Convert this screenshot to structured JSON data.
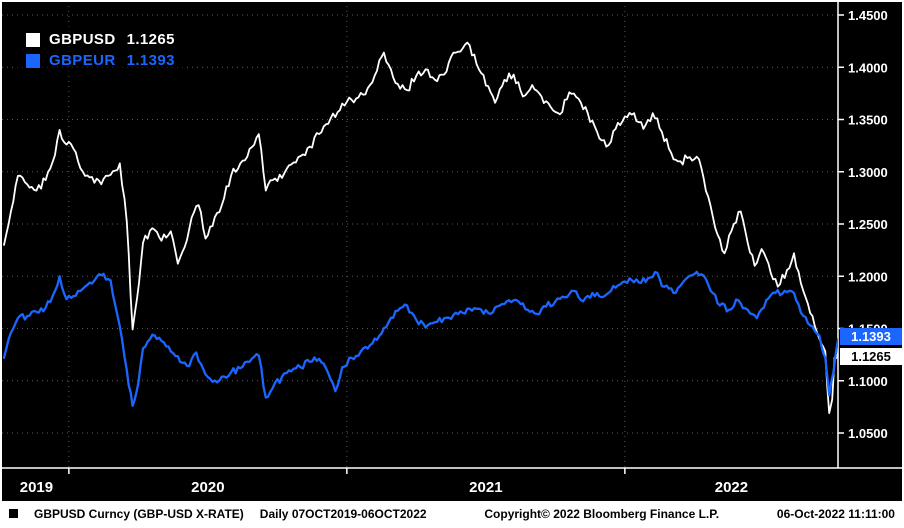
{
  "window": {
    "bg": "#000000",
    "border": "#ffffff"
  },
  "colors": {
    "gbpusd": "#ffffff",
    "gbpeur": "#1a66ff",
    "grid": "#5a5a5a",
    "axis": "#ffffff"
  },
  "legend": {
    "items": [
      {
        "label": "GBPUSD",
        "value": "1.1265",
        "color": "#ffffff"
      },
      {
        "label": "GBPEUR",
        "value": "1.1393",
        "color": "#1a66ff"
      }
    ]
  },
  "badges": [
    {
      "text": "1.1393",
      "value": 1.1393,
      "bg": "#1a66ff",
      "fg": "#ffffff"
    },
    {
      "text": "1.1265",
      "value": 1.1265,
      "bg": "#ffffff",
      "fg": "#000000"
    }
  ],
  "footer": {
    "left": "GBPUSD Curncy (GBP-USD X-RATE)",
    "period": "Daily 07OCT2019-06OCT2022",
    "center": "Copyright© 2022 Bloomberg Finance L.P.",
    "right": "06-Oct-2022 11:11:00"
  },
  "chart_data": {
    "type": "line",
    "title": "",
    "x_unit": "months since 2019-10-07",
    "xlim": [
      0,
      36
    ],
    "ylim": [
      1.05,
      1.45
    ],
    "grid": "dotted",
    "legend_position": "top-left",
    "x_ticks": {
      "labels": [
        "2019",
        "2020",
        "2021",
        "2022"
      ],
      "year_boundaries_months": [
        2.8,
        14.8,
        26.8
      ]
    },
    "y_ticks": [
      "1.4500",
      "1.4000",
      "1.3500",
      "1.3000",
      "1.2500",
      "1.2000",
      "1.1500",
      "1.1000",
      "1.0500"
    ],
    "series": [
      {
        "name": "GBPUSD",
        "color": "#ffffff",
        "last": 1.1265,
        "points": [
          [
            0,
            1.23
          ],
          [
            0.3,
            1.262
          ],
          [
            0.6,
            1.296
          ],
          [
            1.0,
            1.288
          ],
          [
            1.4,
            1.282
          ],
          [
            1.8,
            1.292
          ],
          [
            2.2,
            1.316
          ],
          [
            2.4,
            1.34
          ],
          [
            2.7,
            1.326
          ],
          [
            3.0,
            1.322
          ],
          [
            3.4,
            1.3
          ],
          [
            3.8,
            1.295
          ],
          [
            4.2,
            1.288
          ],
          [
            4.6,
            1.297
          ],
          [
            5.0,
            1.308
          ],
          [
            5.3,
            1.252
          ],
          [
            5.55,
            1.149
          ],
          [
            5.75,
            1.18
          ],
          [
            6.0,
            1.232
          ],
          [
            6.4,
            1.246
          ],
          [
            6.8,
            1.234
          ],
          [
            7.2,
            1.243
          ],
          [
            7.5,
            1.212
          ],
          [
            7.8,
            1.228
          ],
          [
            8.1,
            1.256
          ],
          [
            8.4,
            1.268
          ],
          [
            8.7,
            1.236
          ],
          [
            9.0,
            1.248
          ],
          [
            9.4,
            1.268
          ],
          [
            9.8,
            1.296
          ],
          [
            10.2,
            1.308
          ],
          [
            10.6,
            1.322
          ],
          [
            11.0,
            1.336
          ],
          [
            11.3,
            1.282
          ],
          [
            11.6,
            1.292
          ],
          [
            12.0,
            1.294
          ],
          [
            12.4,
            1.307
          ],
          [
            12.8,
            1.315
          ],
          [
            13.2,
            1.324
          ],
          [
            13.6,
            1.336
          ],
          [
            14.0,
            1.346
          ],
          [
            14.4,
            1.357
          ],
          [
            14.8,
            1.367
          ],
          [
            15.2,
            1.37
          ],
          [
            15.6,
            1.374
          ],
          [
            16.0,
            1.392
          ],
          [
            16.4,
            1.414
          ],
          [
            16.7,
            1.398
          ],
          [
            17.0,
            1.384
          ],
          [
            17.4,
            1.378
          ],
          [
            17.8,
            1.392
          ],
          [
            18.2,
            1.398
          ],
          [
            18.6,
            1.388
          ],
          [
            19.0,
            1.393
          ],
          [
            19.4,
            1.414
          ],
          [
            19.8,
            1.418
          ],
          [
            20.1,
            1.421
          ],
          [
            20.5,
            1.398
          ],
          [
            20.9,
            1.382
          ],
          [
            21.2,
            1.366
          ],
          [
            21.6,
            1.388
          ],
          [
            22.0,
            1.393
          ],
          [
            22.4,
            1.372
          ],
          [
            22.8,
            1.383
          ],
          [
            23.2,
            1.372
          ],
          [
            23.6,
            1.362
          ],
          [
            24.0,
            1.355
          ],
          [
            24.4,
            1.376
          ],
          [
            24.8,
            1.37
          ],
          [
            25.2,
            1.356
          ],
          [
            25.6,
            1.338
          ],
          [
            26.0,
            1.324
          ],
          [
            26.4,
            1.341
          ],
          [
            26.8,
            1.353
          ],
          [
            27.2,
            1.356
          ],
          [
            27.6,
            1.341
          ],
          [
            28.0,
            1.356
          ],
          [
            28.4,
            1.338
          ],
          [
            28.8,
            1.318
          ],
          [
            29.2,
            1.31
          ],
          [
            29.6,
            1.314
          ],
          [
            30.0,
            1.312
          ],
          [
            30.4,
            1.276
          ],
          [
            30.8,
            1.24
          ],
          [
            31.1,
            1.222
          ],
          [
            31.5,
            1.25
          ],
          [
            31.8,
            1.262
          ],
          [
            32.1,
            1.232
          ],
          [
            32.4,
            1.21
          ],
          [
            32.7,
            1.226
          ],
          [
            33.0,
            1.212
          ],
          [
            33.4,
            1.19
          ],
          [
            33.8,
            1.206
          ],
          [
            34.1,
            1.222
          ],
          [
            34.5,
            1.186
          ],
          [
            34.9,
            1.162
          ],
          [
            35.2,
            1.14
          ],
          [
            35.45,
            1.128
          ],
          [
            35.62,
            1.069
          ],
          [
            35.75,
            1.082
          ],
          [
            35.85,
            1.122
          ],
          [
            36,
            1.1265
          ]
        ]
      },
      {
        "name": "GBPEUR",
        "color": "#1a66ff",
        "last": 1.1393,
        "points": [
          [
            0,
            1.122
          ],
          [
            0.3,
            1.146
          ],
          [
            0.6,
            1.16
          ],
          [
            1.0,
            1.162
          ],
          [
            1.4,
            1.166
          ],
          [
            1.8,
            1.17
          ],
          [
            2.2,
            1.186
          ],
          [
            2.4,
            1.2
          ],
          [
            2.7,
            1.178
          ],
          [
            3.0,
            1.181
          ],
          [
            3.4,
            1.188
          ],
          [
            3.8,
            1.193
          ],
          [
            4.2,
            1.201
          ],
          [
            4.6,
            1.196
          ],
          [
            5.0,
            1.152
          ],
          [
            5.3,
            1.11
          ],
          [
            5.55,
            1.076
          ],
          [
            5.8,
            1.098
          ],
          [
            6.0,
            1.131
          ],
          [
            6.4,
            1.144
          ],
          [
            6.8,
            1.138
          ],
          [
            7.2,
            1.128
          ],
          [
            7.6,
            1.118
          ],
          [
            8.0,
            1.114
          ],
          [
            8.3,
            1.127
          ],
          [
            8.7,
            1.106
          ],
          [
            9.0,
            1.099
          ],
          [
            9.4,
            1.104
          ],
          [
            9.8,
            1.108
          ],
          [
            10.2,
            1.112
          ],
          [
            10.6,
            1.118
          ],
          [
            11.0,
            1.124
          ],
          [
            11.3,
            1.084
          ],
          [
            11.6,
            1.093
          ],
          [
            12.0,
            1.104
          ],
          [
            12.4,
            1.109
          ],
          [
            12.8,
            1.113
          ],
          [
            13.2,
            1.118
          ],
          [
            13.6,
            1.121
          ],
          [
            14.0,
            1.107
          ],
          [
            14.3,
            1.09
          ],
          [
            14.6,
            1.113
          ],
          [
            15.0,
            1.122
          ],
          [
            15.4,
            1.128
          ],
          [
            15.8,
            1.134
          ],
          [
            16.2,
            1.143
          ],
          [
            16.6,
            1.156
          ],
          [
            17.0,
            1.167
          ],
          [
            17.4,
            1.172
          ],
          [
            17.8,
            1.158
          ],
          [
            18.2,
            1.151
          ],
          [
            18.6,
            1.156
          ],
          [
            19.0,
            1.16
          ],
          [
            19.4,
            1.163
          ],
          [
            19.8,
            1.165
          ],
          [
            20.2,
            1.167
          ],
          [
            20.6,
            1.168
          ],
          [
            21.0,
            1.164
          ],
          [
            21.4,
            1.172
          ],
          [
            21.8,
            1.177
          ],
          [
            22.2,
            1.176
          ],
          [
            22.6,
            1.168
          ],
          [
            23.0,
            1.164
          ],
          [
            23.4,
            1.171
          ],
          [
            23.8,
            1.176
          ],
          [
            24.2,
            1.18
          ],
          [
            24.6,
            1.186
          ],
          [
            25.0,
            1.176
          ],
          [
            25.4,
            1.184
          ],
          [
            25.8,
            1.18
          ],
          [
            26.2,
            1.186
          ],
          [
            26.6,
            1.192
          ],
          [
            27.0,
            1.198
          ],
          [
            27.4,
            1.194
          ],
          [
            27.8,
            1.198
          ],
          [
            28.1,
            1.204
          ],
          [
            28.5,
            1.19
          ],
          [
            28.9,
            1.184
          ],
          [
            29.3,
            1.194
          ],
          [
            29.7,
            1.201
          ],
          [
            30.1,
            1.202
          ],
          [
            30.5,
            1.186
          ],
          [
            30.9,
            1.172
          ],
          [
            31.3,
            1.168
          ],
          [
            31.7,
            1.177
          ],
          [
            32.1,
            1.168
          ],
          [
            32.5,
            1.16
          ],
          [
            32.9,
            1.177
          ],
          [
            33.3,
            1.184
          ],
          [
            33.7,
            1.186
          ],
          [
            34.1,
            1.184
          ],
          [
            34.5,
            1.162
          ],
          [
            34.9,
            1.152
          ],
          [
            35.2,
            1.143
          ],
          [
            35.45,
            1.122
          ],
          [
            35.62,
            1.086
          ],
          [
            35.8,
            1.108
          ],
          [
            36,
            1.1393
          ]
        ]
      }
    ]
  }
}
